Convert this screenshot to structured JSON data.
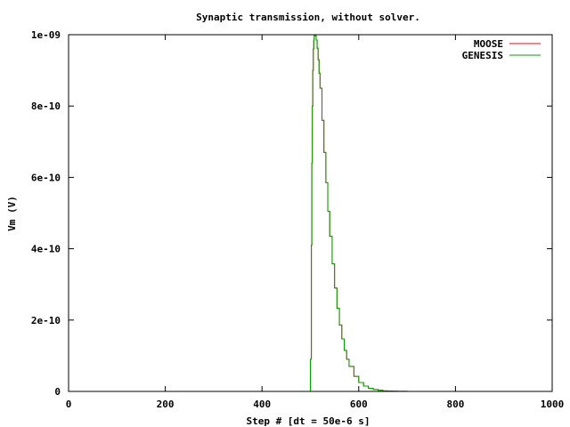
{
  "chart_data": {
    "type": "line",
    "title": "Synaptic transmission, without solver.",
    "xlabel": "Step # [dt = 50e-6 s]",
    "ylabel": "Vm (V)",
    "xlim": [
      0,
      1000
    ],
    "ylim": [
      0,
      1e-09
    ],
    "xticks": [
      0,
      200,
      400,
      600,
      800,
      1000
    ],
    "xtick_labels": [
      "0",
      "200",
      "400",
      "600",
      "800",
      "1000"
    ],
    "yticks": [
      0,
      2e-10,
      4e-10,
      6e-10,
      8e-10,
      1e-09
    ],
    "ytick_labels": [
      "0",
      "2e-10",
      "4e-10",
      "6e-10",
      "8e-10",
      "1e-09"
    ],
    "grid": false,
    "legend_position": "top-right",
    "series": [
      {
        "name": "MOOSE",
        "color": "#ff0000",
        "x": [
          0,
          499,
          500,
          502,
          503,
          504,
          505,
          506,
          507,
          508,
          509,
          510,
          512,
          514,
          516,
          518,
          520,
          524,
          528,
          532,
          536,
          540,
          545,
          550,
          555,
          560,
          565,
          570,
          575,
          580,
          590,
          600,
          610,
          620,
          630,
          640,
          650,
          660,
          670,
          680,
          700,
          800,
          1000
        ],
        "y": [
          0,
          0,
          9e-11,
          4.1e-10,
          6.4e-10,
          8e-10,
          9e-10,
          9.6e-10,
          9.85e-10,
          9.98e-10,
          1e-09,
          9.97e-10,
          9.85e-10,
          9.62e-10,
          9.3e-10,
          8.92e-10,
          8.5e-10,
          7.6e-10,
          6.7e-10,
          5.85e-10,
          5.05e-10,
          4.35e-10,
          3.58e-10,
          2.9e-10,
          2.33e-10,
          1.86e-10,
          1.47e-10,
          1.15e-10,
          9e-11,
          7e-11,
          4.2e-11,
          2.5e-11,
          1.5e-11,
          8.8e-12,
          5.2e-12,
          3e-12,
          1.7e-12,
          1e-12,
          5e-13,
          2e-13,
          0,
          0,
          0
        ]
      },
      {
        "name": "GENESIS",
        "color": "#00a000",
        "x": [
          0,
          499,
          500,
          502,
          503,
          504,
          505,
          506,
          507,
          508,
          509,
          510,
          512,
          514,
          516,
          518,
          520,
          524,
          528,
          532,
          536,
          540,
          545,
          550,
          555,
          560,
          565,
          570,
          575,
          580,
          590,
          600,
          610,
          620,
          630,
          640,
          650,
          660,
          670,
          680,
          700,
          800,
          1000
        ],
        "y": [
          0,
          0,
          9e-11,
          4.1e-10,
          6.4e-10,
          8e-10,
          9e-10,
          9.6e-10,
          9.85e-10,
          9.98e-10,
          1e-09,
          9.97e-10,
          9.85e-10,
          9.62e-10,
          9.3e-10,
          8.92e-10,
          8.5e-10,
          7.6e-10,
          6.7e-10,
          5.85e-10,
          5.05e-10,
          4.35e-10,
          3.58e-10,
          2.9e-10,
          2.33e-10,
          1.86e-10,
          1.47e-10,
          1.15e-10,
          9e-11,
          7e-11,
          4.2e-11,
          2.5e-11,
          1.5e-11,
          8.8e-12,
          5.2e-12,
          3e-12,
          1.7e-12,
          1e-12,
          5e-13,
          2e-13,
          0,
          0,
          0
        ]
      }
    ]
  }
}
